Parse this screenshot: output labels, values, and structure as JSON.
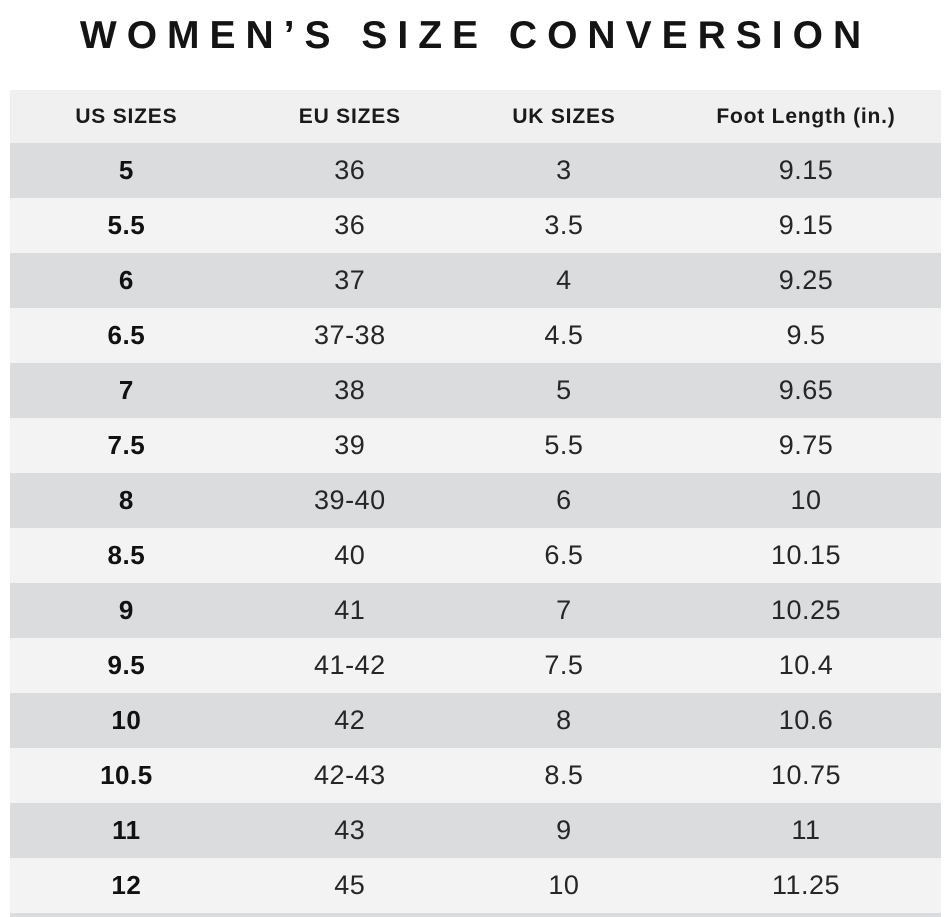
{
  "title": "WOMEN’S SIZE CONVERSION",
  "table": {
    "headers": [
      "US SIZES",
      "EU SIZES",
      "UK SIZES",
      "Foot Length (in.)"
    ],
    "rows": [
      [
        "5",
        "36",
        "3",
        "9.15"
      ],
      [
        "5.5",
        "36",
        "3.5",
        "9.15"
      ],
      [
        "6",
        "37",
        "4",
        "9.25"
      ],
      [
        "6.5",
        "37-38",
        "4.5",
        "9.5"
      ],
      [
        "7",
        "38",
        "5",
        "9.65"
      ],
      [
        "7.5",
        "39",
        "5.5",
        "9.75"
      ],
      [
        "8",
        "39-40",
        "6",
        "10"
      ],
      [
        "8.5",
        "40",
        "6.5",
        "10.15"
      ],
      [
        "9",
        "41",
        "7",
        "10.25"
      ],
      [
        "9.5",
        "41-42",
        "7.5",
        "10.4"
      ],
      [
        "10",
        "42",
        "8",
        "10.6"
      ],
      [
        "10.5",
        "42-43",
        "8.5",
        "10.75"
      ],
      [
        "11",
        "43",
        "9",
        "11"
      ],
      [
        "12",
        "45",
        "10",
        "11.25"
      ]
    ]
  },
  "colors": {
    "page_bg": "#ffffff",
    "header_bg": "#f0f0f0",
    "row_dark": "#dbdcde",
    "row_light": "#f3f3f3",
    "title_color": "#141414",
    "text_color": "#262626"
  },
  "chart_data": {
    "type": "table",
    "title": "WOMEN’S SIZE CONVERSION",
    "columns": [
      "US SIZES",
      "EU SIZES",
      "UK SIZES",
      "Foot Length (in.)"
    ],
    "rows": [
      [
        "5",
        "36",
        "3",
        "9.15"
      ],
      [
        "5.5",
        "36",
        "3.5",
        "9.15"
      ],
      [
        "6",
        "37",
        "4",
        "9.25"
      ],
      [
        "6.5",
        "37-38",
        "4.5",
        "9.5"
      ],
      [
        "7",
        "38",
        "5",
        "9.65"
      ],
      [
        "7.5",
        "39",
        "5.5",
        "9.75"
      ],
      [
        "8",
        "39-40",
        "6",
        "10"
      ],
      [
        "8.5",
        "40",
        "6.5",
        "10.15"
      ],
      [
        "9",
        "41",
        "7",
        "10.25"
      ],
      [
        "9.5",
        "41-42",
        "7.5",
        "10.4"
      ],
      [
        "10",
        "42",
        "8",
        "10.6"
      ],
      [
        "10.5",
        "42-43",
        "8.5",
        "10.75"
      ],
      [
        "11",
        "43",
        "9",
        "11"
      ],
      [
        "12",
        "45",
        "10",
        "11.25"
      ]
    ],
    "layout": {
      "row_striping": "alternating dark/light gray starting dark",
      "alignment": "center",
      "bold_column": "US SIZES"
    }
  }
}
